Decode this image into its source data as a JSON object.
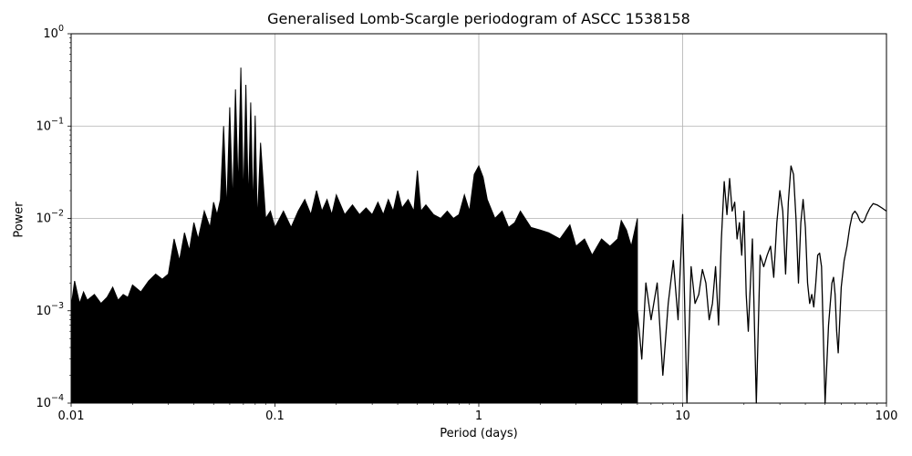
{
  "chart_data": {
    "type": "line",
    "title": "Generalised Lomb-Scargle periodogram of ASCC 1538158",
    "xlabel": "Period (days)",
    "ylabel": "Power",
    "xscale": "log",
    "yscale": "log",
    "xlim": [
      0.01,
      100
    ],
    "ylim": [
      0.0001,
      1
    ],
    "grid": true,
    "x_ticks": [
      {
        "value": 0.01,
        "label": "0.01"
      },
      {
        "value": 0.1,
        "label": "0.1"
      },
      {
        "value": 1,
        "label": "1"
      },
      {
        "value": 10,
        "label": "10"
      },
      {
        "value": 100,
        "label": "100"
      }
    ],
    "y_ticks": [
      {
        "value": 0.0001,
        "base": "10",
        "exp": "−4"
      },
      {
        "value": 0.001,
        "base": "10",
        "exp": "−3"
      },
      {
        "value": 0.01,
        "base": "10",
        "exp": "−2"
      },
      {
        "value": 0.1,
        "base": "10",
        "exp": "−1"
      },
      {
        "value": 1,
        "base": "10",
        "exp": "0"
      }
    ],
    "line_color": "#000000",
    "series": [
      {
        "envelope": {
          "x": [
            0.01,
            0.0104,
            0.011,
            0.0115,
            0.012,
            0.013,
            0.014,
            0.015,
            0.016,
            0.017,
            0.018,
            0.019,
            0.02,
            0.022,
            0.024,
            0.026,
            0.028,
            0.03,
            0.032,
            0.034,
            0.036,
            0.038,
            0.04,
            0.042,
            0.045,
            0.048,
            0.05,
            0.052,
            0.054,
            0.056,
            0.058,
            0.06,
            0.062,
            0.064,
            0.066,
            0.068,
            0.07,
            0.072,
            0.074,
            0.076,
            0.078,
            0.08,
            0.082,
            0.085,
            0.09,
            0.095,
            0.1,
            0.11,
            0.12,
            0.13,
            0.14,
            0.15,
            0.16,
            0.17,
            0.18,
            0.19,
            0.2,
            0.22,
            0.24,
            0.26,
            0.28,
            0.3,
            0.32,
            0.34,
            0.36,
            0.38,
            0.4,
            0.42,
            0.45,
            0.48,
            0.5,
            0.52,
            0.55,
            0.6,
            0.65,
            0.7,
            0.75,
            0.8,
            0.85,
            0.9,
            0.95,
            1.0,
            1.05,
            1.1,
            1.2,
            1.3,
            1.4,
            1.5,
            1.6,
            1.8,
            2.0,
            2.2,
            2.5,
            2.8,
            3.0,
            3.3,
            3.6,
            4.0,
            4.4,
            4.8,
            5.0,
            5.3,
            5.6,
            6.0
          ],
          "y": [
            0.0011,
            0.0021,
            0.0012,
            0.0016,
            0.0013,
            0.0015,
            0.0012,
            0.0014,
            0.0018,
            0.0013,
            0.0015,
            0.0014,
            0.0019,
            0.0016,
            0.0021,
            0.0025,
            0.0022,
            0.0025,
            0.006,
            0.0035,
            0.007,
            0.0045,
            0.009,
            0.006,
            0.012,
            0.008,
            0.015,
            0.011,
            0.016,
            0.1,
            0.012,
            0.16,
            0.014,
            0.25,
            0.02,
            0.43,
            0.015,
            0.28,
            0.014,
            0.18,
            0.012,
            0.13,
            0.009,
            0.066,
            0.01,
            0.012,
            0.008,
            0.012,
            0.008,
            0.012,
            0.016,
            0.011,
            0.02,
            0.012,
            0.016,
            0.011,
            0.018,
            0.011,
            0.014,
            0.011,
            0.013,
            0.011,
            0.015,
            0.011,
            0.016,
            0.012,
            0.02,
            0.013,
            0.016,
            0.012,
            0.033,
            0.012,
            0.014,
            0.011,
            0.01,
            0.012,
            0.01,
            0.011,
            0.018,
            0.012,
            0.03,
            0.037,
            0.028,
            0.016,
            0.01,
            0.012,
            0.008,
            0.009,
            0.012,
            0.008,
            0.0075,
            0.007,
            0.006,
            0.0085,
            0.005,
            0.006,
            0.004,
            0.006,
            0.005,
            0.006,
            0.0095,
            0.0075,
            0.005,
            0.01
          ]
        },
        "curve": {
          "x": [
            6.0,
            6.3,
            6.6,
            7.0,
            7.5,
            8.0,
            8.5,
            9.0,
            9.5,
            10.0,
            10.5,
            11.0,
            11.5,
            12.0,
            12.5,
            13.0,
            13.5,
            14.0,
            14.5,
            15.0,
            15.5,
            16.0,
            16.5,
            17.0,
            17.5,
            18.0,
            18.5,
            19.0,
            19.5,
            20.0,
            20.5,
            21.0,
            22.0,
            23.0,
            24.0,
            25.0,
            26.0,
            27.0,
            28.0,
            29.0,
            30.0,
            31.0,
            32.0,
            33.0,
            34.0,
            35.0,
            36.0,
            37.0,
            38.0,
            39.0,
            40.0,
            41.0,
            42.0,
            43.0,
            44.0,
            45.0,
            46.0,
            47.0,
            48.0,
            50.0,
            52.0,
            54.0,
            55.0,
            56.0,
            57.0,
            58.0,
            59.0,
            60.0,
            62.0,
            64.0,
            66.0,
            68.0,
            70.0,
            72.0,
            74.0,
            76.0,
            78.0,
            80.0,
            83.0,
            86.0,
            90.0,
            95.0,
            100.0
          ],
          "y": [
            0.001,
            0.0003,
            0.002,
            0.0008,
            0.002,
            0.0002,
            0.0012,
            0.0035,
            0.0008,
            0.011,
            0.0001,
            0.003,
            0.0012,
            0.0015,
            0.0028,
            0.002,
            0.0008,
            0.0012,
            0.003,
            0.0007,
            0.006,
            0.025,
            0.011,
            0.027,
            0.012,
            0.015,
            0.006,
            0.009,
            0.004,
            0.012,
            0.0015,
            0.0006,
            0.006,
            0.0001,
            0.004,
            0.003,
            0.004,
            0.005,
            0.0023,
            0.009,
            0.02,
            0.012,
            0.0025,
            0.015,
            0.037,
            0.03,
            0.01,
            0.002,
            0.009,
            0.016,
            0.008,
            0.002,
            0.0012,
            0.0015,
            0.0011,
            0.002,
            0.004,
            0.0042,
            0.003,
            0.0001,
            0.0007,
            0.002,
            0.0023,
            0.0015,
            0.0006,
            0.00035,
            0.0008,
            0.0018,
            0.0035,
            0.005,
            0.008,
            0.011,
            0.012,
            0.011,
            0.0095,
            0.009,
            0.0095,
            0.011,
            0.013,
            0.0145,
            0.014,
            0.013,
            0.012
          ]
        }
      }
    ]
  }
}
